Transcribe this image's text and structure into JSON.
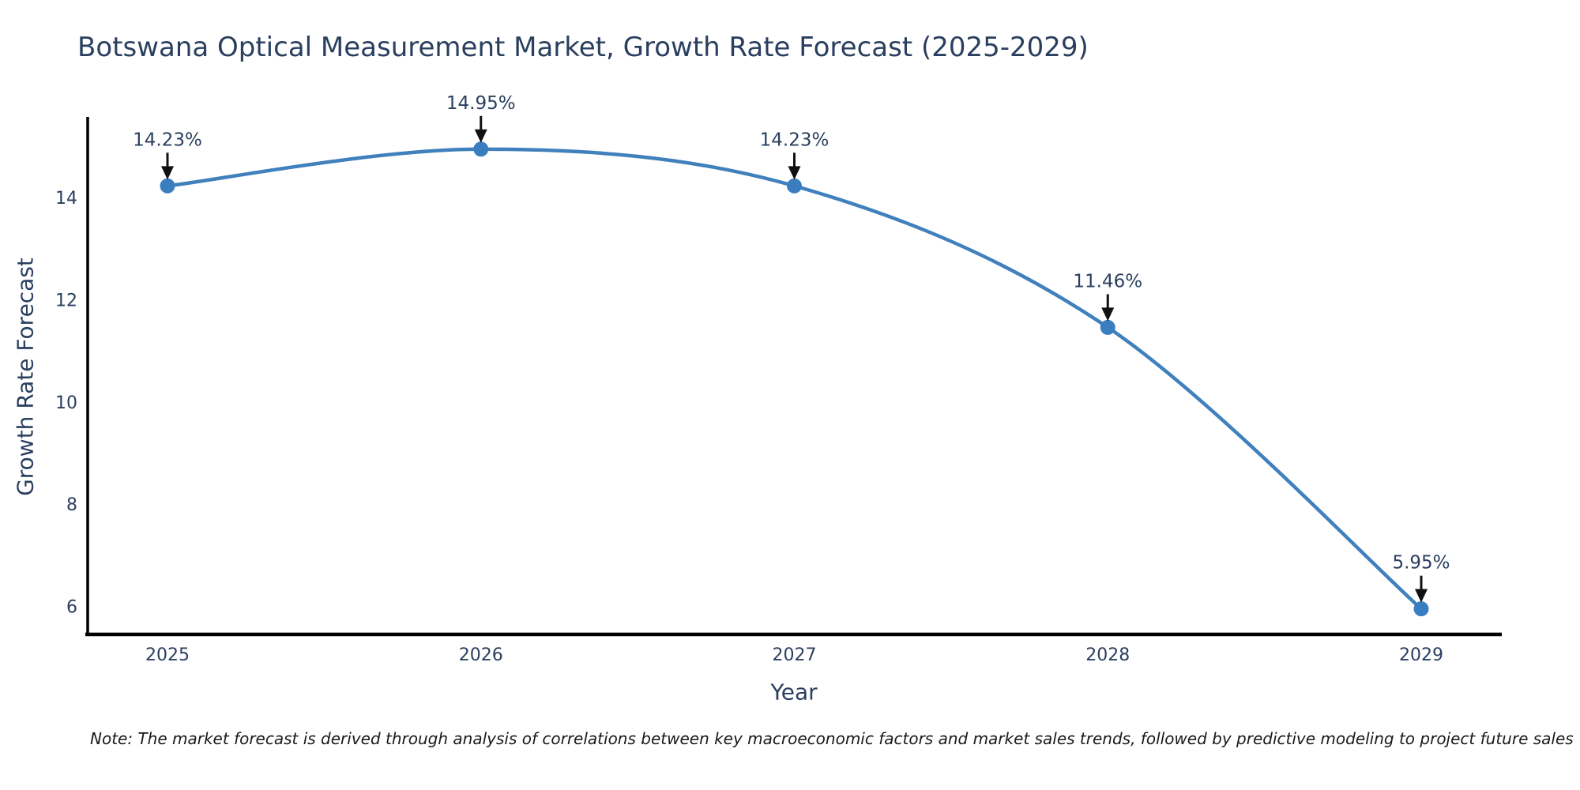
{
  "chart_data": {
    "type": "line",
    "title": "Botswana Optical Measurement Market, Growth Rate Forecast (2025-2029)",
    "xlabel": "Year",
    "ylabel": "Growth Rate Forecast",
    "categories": [
      "2025",
      "2026",
      "2027",
      "2028",
      "2029"
    ],
    "values": [
      14.23,
      14.95,
      14.23,
      11.46,
      5.95
    ],
    "point_labels": [
      "14.23%",
      "14.95%",
      "14.23%",
      "11.46%",
      "5.95%"
    ],
    "yticks": [
      6,
      8,
      10,
      12,
      14
    ],
    "ylim": [
      5.45,
      15.55
    ],
    "line_shape": "spline",
    "grid": false,
    "legend_position": "none",
    "annotation_arrows": true,
    "note": "Note: The market forecast is derived through analysis of correlations between key macroeconomic factors and market sales trends, followed by predictive modeling to project future sales",
    "colors": {
      "line": "#4080bd",
      "marker": "#3a7ebf",
      "axis_line": "#000000",
      "tick_text": "#2a3f5f",
      "annotation_text": "#2a3f5f",
      "arrow": "#111111",
      "note_text": "#1a1a1a",
      "background": "#ffffff"
    }
  }
}
